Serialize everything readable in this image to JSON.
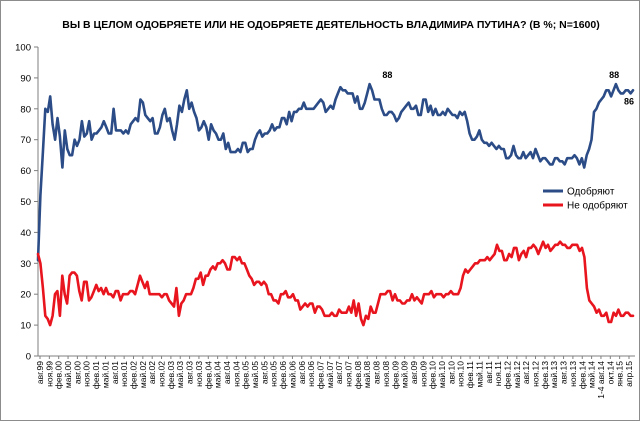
{
  "chart_data": {
    "type": "line",
    "title": "ВЫ В ЦЕЛОМ ОДОБРЯЕТЕ ИЛИ НЕ ОДОБРЯЕТЕ ДЕЯТЕЛЬНОСТЬ ВЛАДИМИРА ПУТИНА? (В %; N=1600)",
    "ylim": [
      0,
      100
    ],
    "yticks": [
      0,
      10,
      20,
      30,
      40,
      50,
      60,
      70,
      80,
      90,
      100
    ],
    "grid": false,
    "legend_position": "right",
    "x_labels": [
      "авг.99",
      "ноя.99",
      "фев.00",
      "май.00",
      "авг.00",
      "ноя.00",
      "фев.01",
      "май.01",
      "авг.01",
      "ноя.01",
      "фев.02",
      "май.02",
      "авг.02",
      "ноя.02",
      "фев.03",
      "май.03",
      "авг.03",
      "ноя.03",
      "фев.04",
      "май.04",
      "авг.04",
      "ноя.04",
      "фев.05",
      "май.05",
      "авг.05",
      "ноя.05",
      "фев.06",
      "май.06",
      "авг.06",
      "ноя.06",
      "фев.07",
      "май.07",
      "авг.07",
      "ноя.07",
      "фев.08",
      "май.08",
      "авг.08",
      "ноя.08",
      "фев.09",
      "май.09",
      "авг.09",
      "ноя.09",
      "фев.10",
      "май.10",
      "авг.10",
      "ноя.10",
      "фев.11",
      "май.11",
      "авг.11",
      "ноя.11",
      "фев.12",
      "май.12",
      "авг.12",
      "ноя.12",
      "фев.13",
      "май.13",
      "авг.13",
      "ноя.13",
      "фев.14",
      "май.14",
      "1-4 авг.14",
      "окт.14",
      "янв.15",
      "апр.15"
    ],
    "annotations": [
      {
        "text": "88",
        "series": "Одобряют",
        "x_label": "ноя.08"
      },
      {
        "text": "88",
        "series": "Одобряют",
        "x_label": "окт.14"
      },
      {
        "text": "86",
        "series": "Одобряют",
        "x_label": "апр.15"
      }
    ],
    "series": [
      {
        "name": "Одобряют",
        "color": "#2b4c86",
        "values": [
          31,
          52,
          66,
          80,
          79,
          84,
          75,
          70,
          77,
          71,
          61,
          73,
          67,
          65,
          65,
          70,
          68,
          70,
          76,
          71,
          72,
          76,
          70,
          72,
          72,
          73,
          74,
          76,
          74,
          72,
          72,
          80,
          73,
          73,
          73,
          72,
          73,
          72,
          75,
          76,
          77,
          76,
          83,
          82,
          78,
          77,
          76,
          77,
          72,
          72,
          74,
          78,
          80,
          76,
          77,
          73,
          70,
          75,
          81,
          79,
          83,
          86,
          80,
          82,
          79,
          77,
          73,
          74,
          76,
          74,
          70,
          75,
          73,
          72,
          70,
          70,
          72,
          67,
          69,
          66,
          66,
          66,
          67,
          66,
          69,
          69,
          66,
          67,
          67,
          70,
          72,
          73,
          71,
          72,
          72,
          73,
          75,
          73,
          74,
          74,
          77,
          77,
          75,
          79,
          76,
          79,
          79,
          80,
          80,
          82,
          80,
          80,
          80,
          80,
          81,
          82,
          83,
          82,
          79,
          80,
          81,
          80,
          83,
          85,
          87,
          86,
          86,
          85,
          85,
          85,
          82,
          84,
          80,
          80,
          82,
          85,
          88,
          86,
          83,
          83,
          83,
          80,
          78,
          78,
          79,
          79,
          78,
          76,
          77,
          79,
          80,
          81,
          82,
          80,
          80,
          81,
          78,
          78,
          83,
          83,
          79,
          81,
          78,
          80,
          78,
          78,
          79,
          78,
          80,
          79,
          78,
          78,
          77,
          79,
          78,
          79,
          76,
          72,
          70,
          70,
          71,
          73,
          70,
          69,
          69,
          68,
          69,
          68,
          67,
          68,
          67,
          67,
          64,
          64,
          65,
          68,
          65,
          64,
          64,
          66,
          64,
          65,
          66,
          64,
          67,
          65,
          63,
          64,
          64,
          63,
          62,
          62,
          64,
          64,
          63,
          63,
          62,
          64,
          64,
          64,
          65,
          64,
          62,
          64,
          61,
          65,
          67,
          70,
          79,
          80,
          82,
          83,
          84,
          86,
          86,
          84,
          86,
          88,
          86,
          85,
          85,
          86,
          86,
          85,
          86
        ]
      },
      {
        "name": "Не одобряют",
        "color": "#e8141e",
        "values": [
          33,
          30,
          22,
          13,
          12,
          10,
          13,
          20,
          21,
          13,
          26,
          20,
          17,
          26,
          27,
          27,
          26,
          21,
          18,
          24,
          24,
          18,
          19,
          21,
          23,
          21,
          22,
          20,
          22,
          20,
          20,
          19,
          21,
          21,
          18,
          20,
          20,
          20,
          21,
          21,
          20,
          23,
          26,
          24,
          22,
          24,
          20,
          20,
          20,
          20,
          20,
          19,
          20,
          20,
          18,
          17,
          16,
          22,
          13,
          17,
          18,
          20,
          20,
          20,
          22,
          25,
          25,
          27,
          23,
          26,
          26,
          28,
          29,
          28,
          30,
          30,
          31,
          30,
          28,
          28,
          32,
          32,
          31,
          32,
          30,
          30,
          28,
          26,
          25,
          23,
          24,
          24,
          23,
          24,
          23,
          20,
          20,
          18,
          18,
          17,
          20,
          20,
          21,
          19,
          19,
          20,
          18,
          18,
          15,
          16,
          17,
          16,
          17,
          17,
          14,
          16,
          16,
          15,
          13,
          13,
          13,
          14,
          13,
          13,
          15,
          14,
          14,
          14,
          16,
          14,
          18,
          13,
          17,
          12,
          10,
          13,
          12,
          16,
          14,
          14,
          17,
          20,
          20,
          20,
          21,
          21,
          18,
          20,
          18,
          18,
          17,
          17,
          18,
          18,
          20,
          18,
          19,
          18,
          17,
          20,
          20,
          20,
          21,
          19,
          20,
          20,
          20,
          19,
          20,
          20,
          21,
          20,
          20,
          20,
          22,
          26,
          28,
          27,
          28,
          29,
          30,
          30,
          31,
          31,
          31,
          32,
          31,
          32,
          33,
          36,
          34,
          34,
          31,
          31,
          33,
          32,
          35,
          35,
          31,
          33,
          34,
          32,
          35,
          35,
          36,
          35,
          33,
          35,
          37,
          35,
          36,
          34,
          35,
          36,
          36,
          37,
          36,
          36,
          35,
          35,
          36,
          36,
          36,
          34,
          35,
          32,
          22,
          18,
          17,
          16,
          14,
          15,
          13,
          13,
          14,
          11,
          11,
          14,
          13,
          15,
          13,
          13,
          14,
          14,
          13,
          13
        ]
      }
    ]
  }
}
